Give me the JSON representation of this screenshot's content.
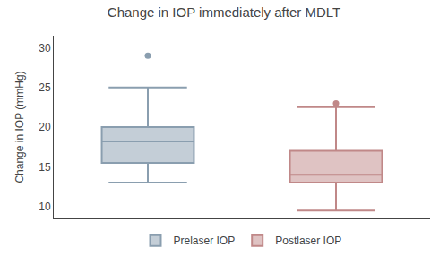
{
  "chart_data": {
    "type": "box",
    "title": "Change in IOP immediately after MDLT",
    "ylabel": "Change in IOP (mmHg)",
    "series": [
      {
        "name": "Prelaser IOP",
        "color": "#8A9EAF",
        "q1": 15.5,
        "median": 18.2,
        "q3": 20.0,
        "whisker_low": 13.0,
        "whisker_high": 25.0,
        "outliers": [
          29.0
        ]
      },
      {
        "name": "Postlaser IOP",
        "color": "#C08888",
        "q1": 13.0,
        "median": 14.0,
        "q3": 17.0,
        "whisker_low": 9.5,
        "whisker_high": 22.5,
        "outliers": [
          23.0
        ]
      }
    ],
    "ylim": [
      8.5,
      31.5
    ],
    "yticks": [
      10,
      15,
      20,
      25,
      30
    ],
    "grid": false,
    "legend": "bottom",
    "tick_labels": "y"
  }
}
